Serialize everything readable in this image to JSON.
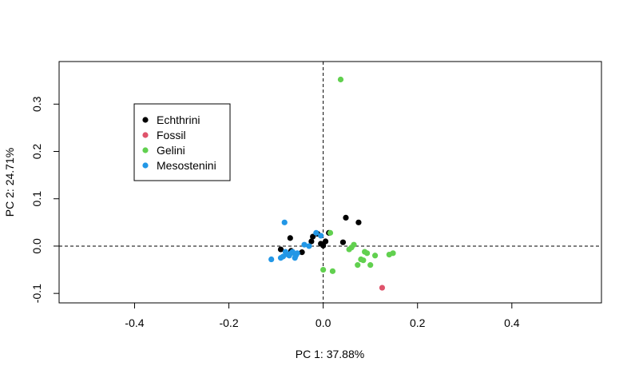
{
  "chart_data": {
    "type": "scatter",
    "title": "",
    "xlabel": "PC 1: 37.88%",
    "ylabel": "PC 2: 24.71%",
    "xlim": [
      -0.56,
      0.59
    ],
    "ylim": [
      -0.12,
      0.39
    ],
    "x_ticks": [
      "-0.4",
      "-0.2",
      "0.0",
      "0.2",
      "0.4"
    ],
    "y_ticks": [
      "-0.1",
      "0.0",
      "0.1",
      "0.2",
      "0.3"
    ],
    "reference_lines": {
      "x": 0,
      "y": 0,
      "style": "dashed"
    },
    "legend_placement": "top-left",
    "grid": false,
    "series": [
      {
        "name": "Echthrini",
        "color": "#000000",
        "points": [
          [
            -0.09,
            -0.007
          ],
          [
            -0.07,
            0.017
          ],
          [
            -0.068,
            -0.01
          ],
          [
            -0.045,
            -0.013
          ],
          [
            -0.025,
            0.01
          ],
          [
            -0.022,
            0.02
          ],
          [
            -0.012,
            0.026
          ],
          [
            -0.005,
            0.005
          ],
          [
            0.0,
            0.001
          ],
          [
            0.005,
            0.01
          ],
          [
            0.012,
            0.028
          ],
          [
            0.042,
            0.008
          ],
          [
            0.048,
            0.06
          ],
          [
            0.075,
            0.05
          ]
        ]
      },
      {
        "name": "Fossil",
        "color": "#DF536B",
        "points": [
          [
            0.125,
            -0.088
          ]
        ]
      },
      {
        "name": "Gelini",
        "color": "#61D04F",
        "points": [
          [
            0.037,
            0.352
          ],
          [
            0.015,
            0.028
          ],
          [
            0.0,
            -0.05
          ],
          [
            0.02,
            -0.053
          ],
          [
            0.055,
            -0.007
          ],
          [
            0.06,
            -0.003
          ],
          [
            0.065,
            0.003
          ],
          [
            0.073,
            -0.04
          ],
          [
            0.08,
            -0.028
          ],
          [
            0.085,
            -0.03
          ],
          [
            0.088,
            -0.012
          ],
          [
            0.093,
            -0.015
          ],
          [
            0.1,
            -0.04
          ],
          [
            0.11,
            -0.02
          ],
          [
            0.14,
            -0.018
          ],
          [
            0.148,
            -0.015
          ]
        ]
      },
      {
        "name": "Mesostenini",
        "color": "#2297E6",
        "points": [
          [
            -0.11,
            -0.028
          ],
          [
            -0.09,
            -0.025
          ],
          [
            -0.085,
            -0.022
          ],
          [
            -0.082,
            0.05
          ],
          [
            -0.08,
            -0.012
          ],
          [
            -0.075,
            -0.018
          ],
          [
            -0.072,
            -0.02
          ],
          [
            -0.068,
            -0.015
          ],
          [
            -0.065,
            -0.012
          ],
          [
            -0.06,
            -0.025
          ],
          [
            -0.058,
            -0.02
          ],
          [
            -0.055,
            -0.015
          ],
          [
            -0.04,
            0.003
          ],
          [
            -0.03,
            0.0
          ],
          [
            -0.015,
            0.028
          ],
          [
            -0.005,
            0.022
          ]
        ]
      }
    ]
  }
}
